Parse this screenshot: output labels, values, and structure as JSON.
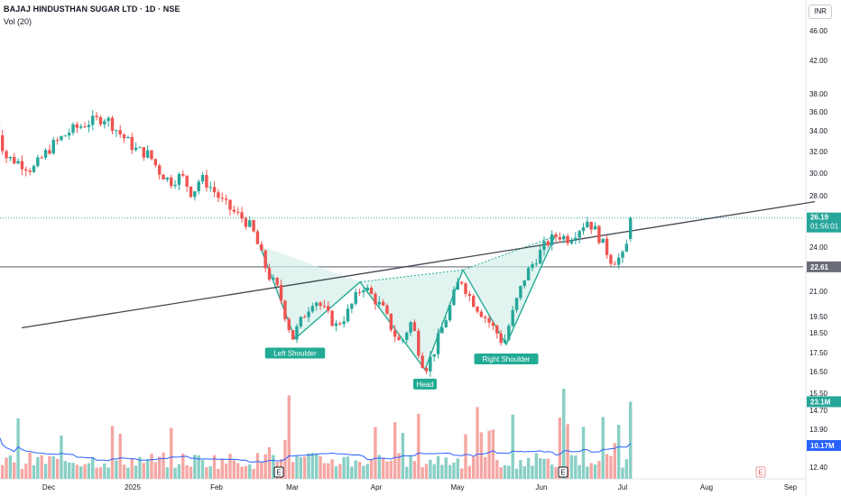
{
  "header": {
    "title": "BAJAJ HINDUSTHAN SUGAR LTD · 1D · NSE",
    "volume_indicator": "Vol (20)"
  },
  "currency_button": "INR",
  "chart_data": {
    "type": "candlestick",
    "y_axis": {
      "scale": "log",
      "ticks": [
        46.0,
        42.0,
        38.0,
        36.0,
        34.0,
        32.0,
        30.0,
        28.0,
        24.0,
        21.0,
        19.5,
        18.5,
        17.5,
        16.5,
        15.5,
        14.7,
        13.9,
        12.4
      ],
      "tick_labels": [
        "46.00",
        "42.00",
        "38.00",
        "36.00",
        "34.00",
        "32.00",
        "30.00",
        "28.00",
        "24.00",
        "21.00",
        "19.50",
        "18.50",
        "17.50",
        "16.50",
        "15.50",
        "14.70",
        "13.90",
        "12.40"
      ],
      "range": [
        11.6,
        48.5
      ]
    },
    "x_axis": {
      "labels": [
        {
          "text": "Dec",
          "date": "2024-12-01"
        },
        {
          "text": "2025",
          "date": "2025-01-01"
        },
        {
          "text": "Feb",
          "date": "2025-02-01"
        },
        {
          "text": "Mar",
          "date": "2025-03-01"
        },
        {
          "text": "Apr",
          "date": "2025-04-01"
        },
        {
          "text": "May",
          "date": "2025-05-01"
        },
        {
          "text": "Jun",
          "date": "2025-06-01"
        },
        {
          "text": "Jul",
          "date": "2025-07-01"
        },
        {
          "text": "Aug",
          "date": "2025-08-01"
        },
        {
          "text": "Sep",
          "date": "2025-09-01"
        }
      ]
    },
    "price_path": [
      [
        "2024-11-11",
        35.2
      ],
      [
        "2024-11-15",
        31.5
      ],
      [
        "2024-11-20",
        31.0
      ],
      [
        "2024-11-25",
        30.3
      ],
      [
        "2024-12-02",
        32.5
      ],
      [
        "2024-12-09",
        34.0
      ],
      [
        "2024-12-16",
        34.9
      ],
      [
        "2024-12-22",
        35.4
      ],
      [
        "2024-12-27",
        33.8
      ],
      [
        "2025-01-02",
        32.2
      ],
      [
        "2025-01-07",
        31.7
      ],
      [
        "2025-01-11",
        30.1
      ],
      [
        "2025-01-15",
        29.2
      ],
      [
        "2025-01-19",
        29.8
      ],
      [
        "2025-01-23",
        28.1
      ],
      [
        "2025-01-26",
        29.6
      ],
      [
        "2025-01-30",
        28.7
      ],
      [
        "2025-02-03",
        27.5
      ],
      [
        "2025-02-07",
        26.7
      ],
      [
        "2025-02-11",
        26.1
      ],
      [
        "2025-02-14",
        25.4
      ],
      [
        "2025-02-17",
        23.7
      ],
      [
        "2025-02-20",
        22.1
      ],
      [
        "2025-02-24",
        21.0
      ],
      [
        "2025-02-27",
        19.2
      ],
      [
        "2025-03-01",
        18.2
      ],
      [
        "2025-03-05",
        19.5
      ],
      [
        "2025-03-09",
        20.6
      ],
      [
        "2025-03-13",
        19.8
      ],
      [
        "2025-03-17",
        18.9
      ],
      [
        "2025-03-21",
        19.6
      ],
      [
        "2025-03-27",
        21.4
      ],
      [
        "2025-04-01",
        20.4
      ],
      [
        "2025-04-04",
        19.8
      ],
      [
        "2025-04-07",
        18.6
      ],
      [
        "2025-04-10",
        17.9
      ],
      [
        "2025-04-14",
        19.2
      ],
      [
        "2025-04-17",
        17.4
      ],
      [
        "2025-04-19",
        16.6
      ],
      [
        "2025-04-23",
        17.8
      ],
      [
        "2025-04-27",
        19.5
      ],
      [
        "2025-05-02",
        21.9
      ],
      [
        "2025-05-05",
        20.8
      ],
      [
        "2025-05-08",
        20.1
      ],
      [
        "2025-05-12",
        19.3
      ],
      [
        "2025-05-16",
        18.4
      ],
      [
        "2025-05-18",
        17.9
      ],
      [
        "2025-05-22",
        20.0
      ],
      [
        "2025-05-26",
        22.0
      ],
      [
        "2025-05-30",
        23.2
      ],
      [
        "2025-06-03",
        24.3
      ],
      [
        "2025-06-07",
        24.9
      ],
      [
        "2025-06-11",
        24.6
      ],
      [
        "2025-06-15",
        25.4
      ],
      [
        "2025-06-18",
        26.0
      ],
      [
        "2025-06-21",
        25.2
      ],
      [
        "2025-06-24",
        24.1
      ],
      [
        "2025-06-27",
        23.0
      ],
      [
        "2025-07-01",
        23.3
      ],
      [
        "2025-07-03",
        24.4
      ],
      [
        "2025-07-05",
        26.19
      ]
    ],
    "last_price": {
      "value": "26.19",
      "countdown": "01:56:01"
    },
    "horizontal_line": {
      "value": 22.61,
      "label": "22.61"
    },
    "trendline": {
      "start": [
        "2024-11-21",
        18.8
      ],
      "end": [
        "2025-09-10",
        27.5
      ]
    },
    "pattern": {
      "points": [
        [
          "2025-02-17",
          24.1
        ],
        [
          "2025-03-02",
          18.2
        ],
        [
          "2025-03-26",
          21.6
        ],
        [
          "2025-04-19",
          16.6
        ],
        [
          "2025-05-03",
          22.4
        ],
        [
          "2025-05-19",
          17.9
        ],
        [
          "2025-06-06",
          24.8
        ]
      ],
      "labels": [
        {
          "text": "Left Shoulder",
          "date": "2025-03-02",
          "price": 18.2
        },
        {
          "text": "Head",
          "date": "2025-04-19",
          "price": 16.6
        },
        {
          "text": "Right Shoulder",
          "date": "2025-05-19",
          "price": 17.9
        }
      ]
    },
    "volume": {
      "label": "23.1M",
      "ma_label": "10.17M",
      "scale_max_millions": 27
    },
    "events": [
      {
        "label": "E",
        "date": "2025-02-24"
      },
      {
        "label": "E",
        "date": "2025-06-09"
      },
      {
        "label": "E",
        "date": "2025-08-21",
        "future": true
      }
    ],
    "colors": {
      "up": "#26a69a",
      "down": "#ef5350",
      "up_volume": "#88cfc5",
      "down_volume": "#f4a7a3",
      "trendline": "#434651",
      "pattern_fill": "#d4efe9",
      "pattern_stroke": "#22ab94",
      "volume_ma": "#2962ff",
      "last_price_badge": "#26a69a",
      "level_badge": "#6a6d78",
      "volume_ma_badge": "#2962ff"
    }
  }
}
